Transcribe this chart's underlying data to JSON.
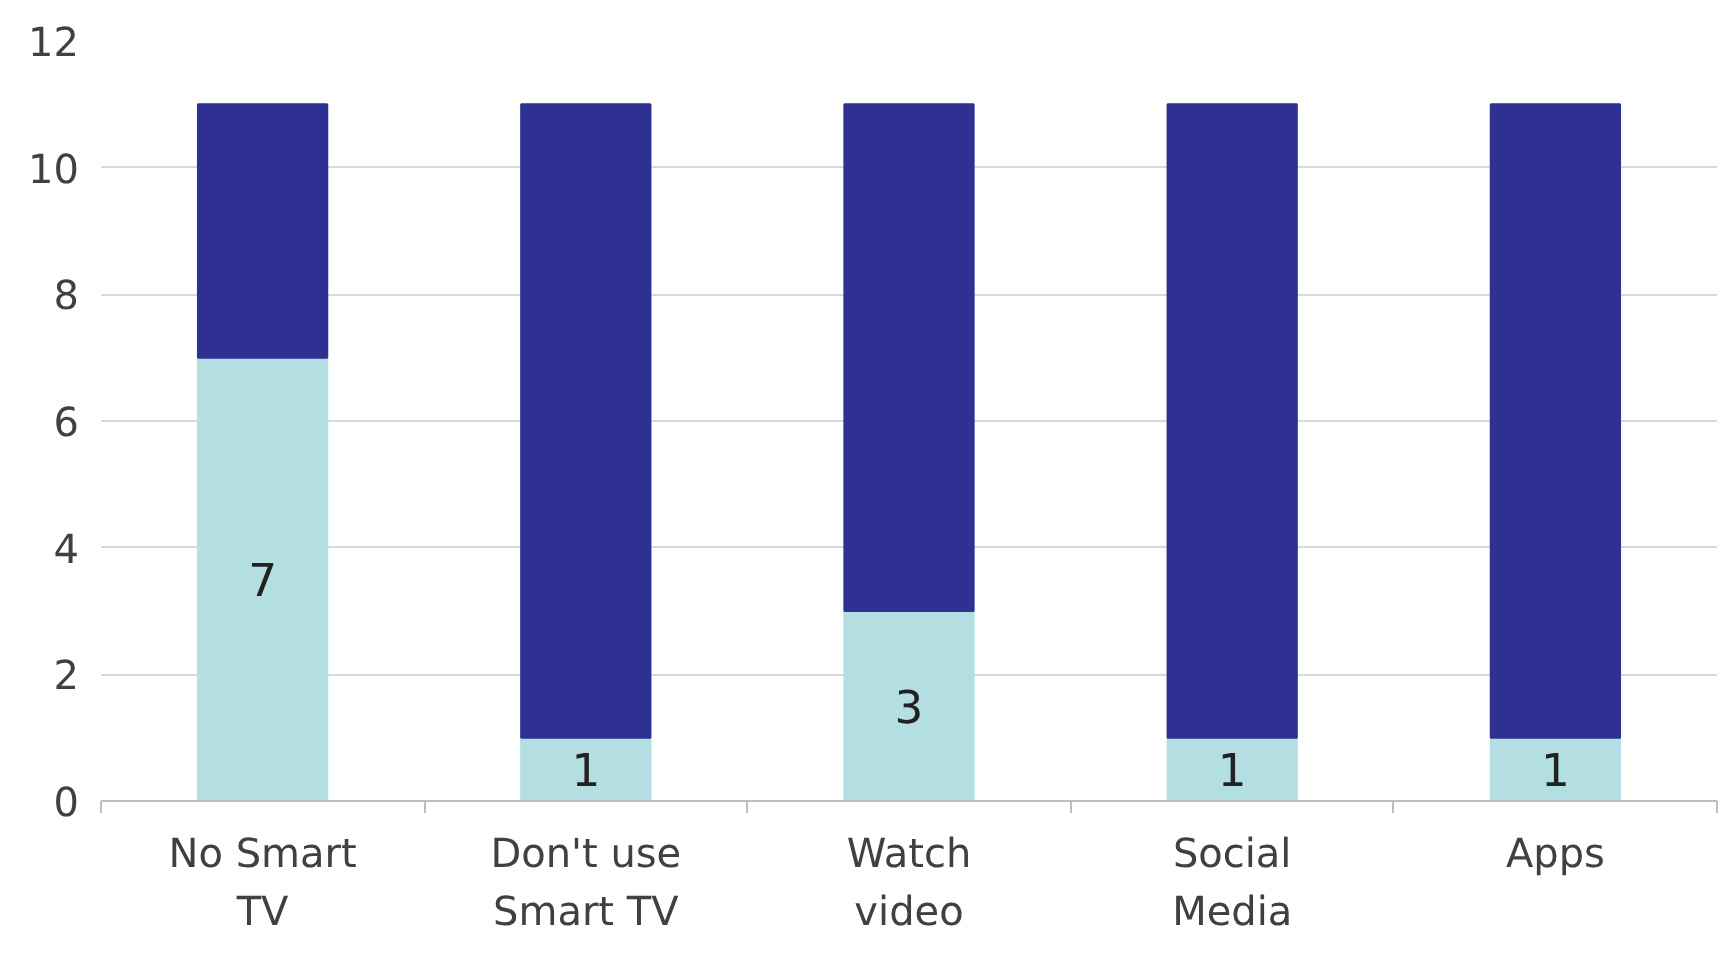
{
  "chart_data": {
    "type": "bar",
    "stacked": true,
    "categories": [
      "No Smart TV",
      "Don't use Smart TV",
      "Watch video",
      "Social Media",
      "Apps"
    ],
    "series": [
      {
        "color": "#b4dfe2",
        "values": [
          7,
          1,
          3,
          1,
          1
        ],
        "value_labels": [
          "7",
          "1",
          "3",
          "1",
          "1"
        ]
      },
      {
        "color": "#2e3192",
        "values": [
          4,
          10,
          8,
          10,
          10
        ]
      }
    ],
    "ylim": [
      0,
      12
    ],
    "yticks": [
      0,
      2,
      4,
      6,
      8,
      10,
      12
    ],
    "grid": "y"
  }
}
